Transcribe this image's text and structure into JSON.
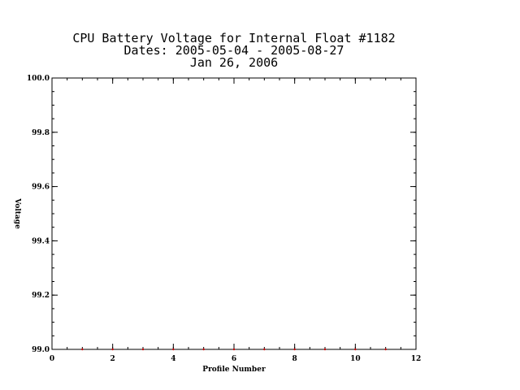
{
  "chart_data": {
    "type": "scatter",
    "title_lines": [
      "CPU Battery Voltage for Internal Float #1182",
      "Dates:  2005-05-04 -  2005-08-27",
      "Jan 26, 2006"
    ],
    "xlabel": "Profile Number",
    "ylabel": "Voltage",
    "xlim": [
      0,
      12
    ],
    "ylim": [
      99.0,
      100.0
    ],
    "x_major_ticks": [
      0,
      2,
      4,
      6,
      8,
      10,
      12
    ],
    "x_tick_labels": [
      "0",
      "2",
      "4",
      "6",
      "8",
      "10",
      "12"
    ],
    "y_major_ticks": [
      99.0,
      99.2,
      99.4,
      99.6,
      99.8,
      100.0
    ],
    "y_tick_labels": [
      "99.0",
      "99.2",
      "99.4",
      "99.6",
      "99.8",
      "100.0"
    ],
    "x_minor_step": 0.5,
    "y_minor_step": 0.05,
    "grid": false,
    "legend": "none",
    "marker_color": "#cc0000",
    "series": [
      {
        "x": [
          1,
          2,
          3,
          4,
          5,
          6,
          7,
          8,
          9,
          10,
          11
        ],
        "y": [
          99.0,
          99.0,
          99.0,
          99.0,
          99.0,
          99.0,
          99.0,
          99.0,
          99.0,
          99.0,
          99.0
        ]
      }
    ]
  }
}
